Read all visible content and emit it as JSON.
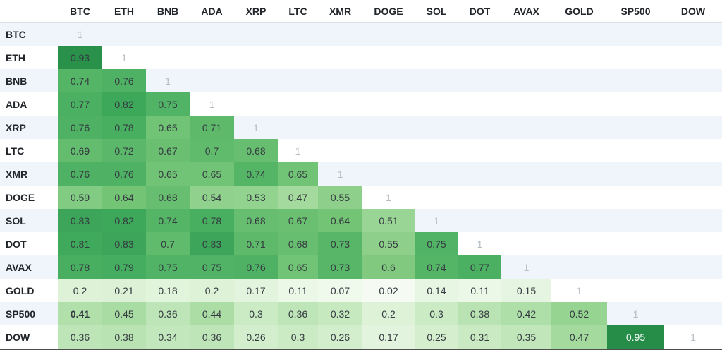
{
  "chart_data": {
    "type": "heatmap",
    "title": "",
    "x_labels": [
      "BTC",
      "ETH",
      "BNB",
      "ADA",
      "XRP",
      "LTC",
      "XMR",
      "DOGE",
      "SOL",
      "DOT",
      "AVAX",
      "GOLD",
      "SP500",
      "DOW"
    ],
    "y_labels": [
      "BTC",
      "ETH",
      "BNB",
      "ADA",
      "XRP",
      "LTC",
      "XMR",
      "DOGE",
      "SOL",
      "DOT",
      "AVAX",
      "GOLD",
      "SP500",
      "DOW"
    ],
    "rows": [
      {
        "label": "BTC",
        "values": [
          1
        ]
      },
      {
        "label": "ETH",
        "values": [
          0.93,
          1
        ]
      },
      {
        "label": "BNB",
        "values": [
          0.74,
          0.76,
          1
        ]
      },
      {
        "label": "ADA",
        "values": [
          0.77,
          0.82,
          0.75,
          1
        ]
      },
      {
        "label": "XRP",
        "values": [
          0.76,
          0.78,
          0.65,
          0.71,
          1
        ]
      },
      {
        "label": "LTC",
        "values": [
          0.69,
          0.72,
          0.67,
          0.7,
          0.68,
          1
        ]
      },
      {
        "label": "XMR",
        "values": [
          0.76,
          0.76,
          0.65,
          0.65,
          0.74,
          0.65,
          1
        ]
      },
      {
        "label": "DOGE",
        "values": [
          0.59,
          0.64,
          0.68,
          0.54,
          0.53,
          0.47,
          0.55,
          1
        ]
      },
      {
        "label": "SOL",
        "values": [
          0.83,
          0.82,
          0.74,
          0.78,
          0.68,
          0.67,
          0.64,
          0.51,
          1
        ]
      },
      {
        "label": "DOT",
        "values": [
          0.81,
          0.83,
          0.7,
          0.83,
          0.71,
          0.68,
          0.73,
          0.55,
          0.75,
          1
        ]
      },
      {
        "label": "AVAX",
        "values": [
          0.78,
          0.79,
          0.75,
          0.75,
          0.76,
          0.65,
          0.73,
          0.6,
          0.74,
          0.77,
          1
        ]
      },
      {
        "label": "GOLD",
        "values": [
          0.2,
          0.21,
          0.18,
          0.2,
          0.17,
          0.11,
          0.07,
          0.02,
          0.14,
          0.11,
          0.15,
          1
        ]
      },
      {
        "label": "SP500",
        "values": [
          0.41,
          0.45,
          0.36,
          0.44,
          0.3,
          0.36,
          0.32,
          0.2,
          0.3,
          0.38,
          0.42,
          0.52,
          1
        ]
      },
      {
        "label": "DOW",
        "values": [
          0.36,
          0.38,
          0.34,
          0.36,
          0.26,
          0.3,
          0.26,
          0.17,
          0.25,
          0.31,
          0.35,
          0.47,
          0.95,
          1
        ]
      }
    ],
    "bold_cells": [
      {
        "row": "SP500",
        "col": "BTC"
      }
    ],
    "colormap": "Greens",
    "legend_position": "none",
    "grid": false,
    "value_range": [
      0,
      1
    ]
  },
  "colors": {
    "max_green": "#238b45",
    "min_green": "#f7fcf5",
    "stripe": "#f0f5fb",
    "diag_text": "#b5bcc2",
    "text": "#343a40",
    "text_on_dark": "#ffffff",
    "header_border": "#dee2e6",
    "bottom_border": "#4e4e4e"
  }
}
